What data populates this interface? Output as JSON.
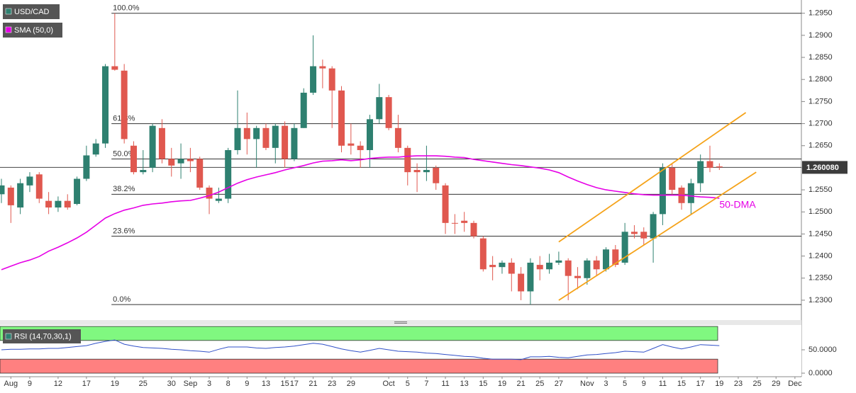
{
  "chart_data": [
    {
      "type": "candlestick",
      "categories": [
        null,
        "Aug",
        null,
        "9",
        null,
        null,
        "12",
        null,
        null,
        "17",
        null,
        null,
        "19",
        null,
        null,
        "25",
        null,
        null,
        "30",
        null,
        "Sep",
        null,
        "3",
        null,
        "8",
        null,
        "9",
        null,
        "13",
        null,
        "15",
        "17",
        null,
        "21",
        null,
        "23",
        null,
        "29",
        null,
        null,
        null,
        "Oct",
        null,
        "5",
        null,
        "7",
        null,
        "11",
        null,
        "13",
        null,
        "15",
        null,
        "19",
        null,
        "21",
        null,
        "25",
        null,
        "27",
        null,
        null,
        "Nov",
        null,
        "3",
        null,
        "5",
        null,
        "9",
        null,
        "11",
        null,
        "15",
        null,
        "17",
        null,
        "19",
        null,
        "23",
        null,
        "25",
        null,
        "29",
        null,
        "Dec"
      ],
      "series": [
        {
          "name": "USD/CAD",
          "open": [
            1.254,
            1.2555,
            1.251,
            1.256,
            1.2585,
            1.2525,
            1.251,
            1.2525,
            1.2518,
            1.2575,
            1.263,
            1.2655,
            1.283,
            1.282,
            1.265,
            1.259,
            1.26,
            1.269,
            1.262,
            1.261,
            1.262,
            1.262,
            1.2555,
            1.2525,
            1.253,
            1.264,
            1.269,
            1.2665,
            1.269,
            1.2645,
            1.2695,
            1.262,
            1.269,
            1.277,
            1.283,
            1.2825,
            1.2775,
            1.2655,
            1.265,
            1.264,
            1.271,
            1.276,
            1.269,
            1.2645,
            1.2595,
            1.259,
            1.26,
            1.256,
            1.2475,
            1.248,
            1.2475,
            1.244,
            1.238,
            1.2375,
            1.2385,
            1.236,
            1.232,
            1.238,
            1.237,
            1.2385,
            1.239,
            1.2355,
            1.235,
            1.239,
            1.237,
            1.2415,
            1.2385,
            1.2455,
            1.2455,
            1.244,
            1.2495,
            1.26,
            1.2555,
            1.252,
            1.2565,
            1.2615,
            1.2603,
            null,
            null,
            null,
            null,
            null,
            null,
            null,
            null
          ],
          "high": [
            1.2575,
            1.256,
            1.2575,
            1.259,
            1.259,
            1.2545,
            1.2535,
            1.254,
            1.258,
            1.265,
            1.2665,
            1.2835,
            1.295,
            1.2835,
            1.266,
            1.264,
            1.27,
            1.271,
            1.2645,
            1.2655,
            1.2645,
            1.2625,
            1.256,
            1.2555,
            1.2645,
            1.2775,
            1.2725,
            1.2695,
            1.27,
            1.27,
            1.2705,
            1.27,
            1.278,
            1.29,
            1.2845,
            1.283,
            1.2785,
            1.27,
            1.266,
            1.272,
            1.279,
            1.2765,
            1.272,
            1.265,
            1.261,
            1.265,
            1.2605,
            1.2565,
            1.2495,
            1.25,
            1.248,
            1.2445,
            1.24,
            1.239,
            1.2395,
            1.2375,
            1.2395,
            1.24,
            1.2405,
            1.241,
            1.2395,
            1.2375,
            1.2395,
            1.24,
            1.242,
            1.2425,
            1.2475,
            1.247,
            1.2465,
            1.25,
            1.261,
            1.261,
            1.256,
            1.2575,
            1.263,
            1.265,
            1.261,
            null,
            null,
            null,
            null,
            null,
            null,
            null,
            null
          ],
          "low": [
            1.252,
            1.2475,
            1.2495,
            1.2545,
            1.252,
            1.2495,
            1.25,
            1.2505,
            1.2515,
            1.257,
            1.2625,
            1.2645,
            1.282,
            1.2655,
            1.2585,
            1.2585,
            1.259,
            1.261,
            1.258,
            1.2575,
            1.259,
            1.255,
            1.2495,
            1.252,
            1.252,
            1.263,
            1.263,
            1.26,
            1.264,
            1.261,
            1.26,
            1.2615,
            1.269,
            1.2765,
            1.278,
            1.269,
            1.2635,
            1.263,
            1.26,
            1.26,
            1.27,
            1.2685,
            1.2635,
            1.256,
            1.2545,
            1.257,
            1.255,
            1.245,
            1.245,
            1.2455,
            1.244,
            1.2365,
            1.2345,
            1.236,
            1.232,
            1.23,
            1.229,
            1.2345,
            1.236,
            1.238,
            1.23,
            1.2325,
            1.2335,
            1.2355,
            1.2365,
            1.2375,
            1.238,
            1.244,
            1.2425,
            1.2385,
            1.247,
            1.254,
            1.2505,
            1.2495,
            1.2545,
            1.259,
            1.2595,
            null,
            null,
            null,
            null,
            null,
            null,
            null,
            null
          ],
          "close": [
            1.256,
            1.2515,
            1.2565,
            1.258,
            1.253,
            1.251,
            1.2525,
            1.251,
            1.2575,
            1.2628,
            1.2655,
            1.283,
            1.2822,
            1.2665,
            1.259,
            1.2595,
            1.2695,
            1.262,
            1.2605,
            1.262,
            1.2615,
            1.2555,
            1.253,
            1.253,
            1.264,
            1.269,
            1.2665,
            1.269,
            1.2645,
            1.2695,
            1.262,
            1.269,
            1.277,
            1.283,
            1.2825,
            1.2775,
            1.265,
            1.265,
            1.264,
            1.271,
            1.276,
            1.269,
            1.2645,
            1.259,
            1.259,
            1.2595,
            1.2565,
            1.2475,
            1.2475,
            1.2475,
            1.2445,
            1.237,
            1.2375,
            1.2385,
            1.236,
            1.232,
            1.2385,
            1.237,
            1.2385,
            1.239,
            1.2355,
            1.235,
            1.239,
            1.237,
            1.2415,
            1.238,
            1.2455,
            1.245,
            1.244,
            1.2495,
            1.26,
            1.255,
            1.252,
            1.2565,
            1.2615,
            1.26,
            1.2601,
            null,
            null,
            null,
            null,
            null,
            null,
            null,
            null
          ]
        },
        {
          "name": "SMA (50,0)",
          "color": "#e600e6",
          "values": [
            1.2369,
            1.2377,
            1.2385,
            1.2391,
            1.2399,
            1.2411,
            1.242,
            1.243,
            1.2441,
            1.2454,
            1.247,
            1.2486,
            1.2496,
            1.2504,
            1.2509,
            1.2515,
            1.2518,
            1.252,
            1.2523,
            1.2525,
            1.2526,
            1.2531,
            1.2537,
            1.2545,
            1.2555,
            1.2565,
            1.2573,
            1.2579,
            1.2584,
            1.2589,
            1.2595,
            1.26,
            1.2605,
            1.2611,
            1.2615,
            1.2616,
            1.2618,
            1.2616,
            1.2618,
            1.2621,
            1.2623,
            1.2624,
            1.2624,
            1.2626,
            1.2627,
            1.2627,
            1.2627,
            1.2626,
            1.2624,
            1.2623,
            1.2619,
            1.2616,
            1.2613,
            1.261,
            1.2607,
            1.2605,
            1.2602,
            1.2599,
            1.2595,
            1.2589,
            1.2579,
            1.257,
            1.2562,
            1.2555,
            1.255,
            1.2547,
            1.2544,
            1.2541,
            1.2539,
            1.2538,
            1.2538,
            1.2538,
            1.2538,
            1.2536,
            1.2534,
            1.2533,
            1.2531,
            null,
            null,
            null,
            null,
            null,
            null,
            null,
            null
          ]
        }
      ],
      "up_color": "#2e8070",
      "down_color": "#e0584f",
      "ylim": [
        1.2255,
        1.298
      ],
      "yticks": [
        {
          "value": 1.23,
          "label": "1.2300"
        },
        {
          "value": 1.235,
          "label": "1.2350"
        },
        {
          "value": 1.24,
          "label": "1.2400"
        },
        {
          "value": 1.245,
          "label": "1.2450"
        },
        {
          "value": 1.25,
          "label": "1.2500"
        },
        {
          "value": 1.255,
          "label": "1.2550"
        },
        {
          "value": 1.26,
          "label": "1.2600"
        },
        {
          "value": 1.265,
          "label": "1.2650"
        },
        {
          "value": 1.27,
          "label": "1.2700"
        },
        {
          "value": 1.275,
          "label": "1.2750"
        },
        {
          "value": 1.28,
          "label": "1.2800"
        },
        {
          "value": 1.285,
          "label": "1.2850"
        },
        {
          "value": 1.29,
          "label": "1.2900"
        },
        {
          "value": 1.295,
          "label": "1.2950"
        }
      ],
      "fib_levels": [
        {
          "value": 1.295,
          "label": "100.0%"
        },
        {
          "value": 1.27,
          "label": "61.8%"
        },
        {
          "value": 1.262,
          "label": "50.0%"
        },
        {
          "value": 1.254,
          "label": "38.2%"
        },
        {
          "value": 1.2445,
          "label": "23.6%"
        },
        {
          "value": 1.229,
          "label": "0.0%"
        }
      ],
      "channel": [
        {
          "x": [
            59,
            78.8
          ],
          "y": [
            1.2432,
            1.2725
          ],
          "color": "#f5a31a"
        },
        {
          "x": [
            59,
            79.9
          ],
          "y": [
            1.23,
            1.259
          ],
          "color": "#f5a31a"
        }
      ],
      "annotations": [
        {
          "text": "50-DMA",
          "x": 76,
          "y": 1.2515,
          "color": "#e600e6"
        }
      ],
      "last_price": {
        "value": 1.26008,
        "label": "1.260080"
      }
    },
    {
      "type": "line",
      "title": "RSI (14,70,30,1)",
      "series": [
        {
          "color": "#3050c8",
          "values": [
            50,
            51,
            51,
            52,
            52,
            53,
            53,
            55,
            57,
            59,
            64,
            68,
            71,
            62,
            58,
            55,
            54,
            53,
            51,
            50,
            48,
            47,
            45,
            51,
            56,
            56,
            56,
            54,
            53,
            55,
            56,
            58,
            61,
            64,
            62,
            57,
            52,
            48,
            45,
            49,
            53,
            50,
            47,
            46,
            45,
            43,
            42,
            40,
            38,
            36,
            35,
            32,
            30,
            30,
            30,
            29,
            35,
            35,
            36,
            34,
            33,
            36,
            39,
            40,
            42,
            44,
            47,
            46,
            45,
            53,
            61,
            56,
            52,
            56,
            61,
            60,
            59,
            null,
            null,
            null,
            null,
            null,
            null,
            null,
            null
          ]
        }
      ],
      "ylim": [
        0,
        100
      ],
      "yticks": [
        {
          "value": 50,
          "label": "50.0000"
        },
        {
          "value": 0,
          "label": "0.0000"
        }
      ],
      "bands": [
        {
          "from": 70,
          "to": 100,
          "color": "#80f880"
        },
        {
          "from": 0,
          "to": 30,
          "color": "#ff8080"
        }
      ]
    }
  ]
}
